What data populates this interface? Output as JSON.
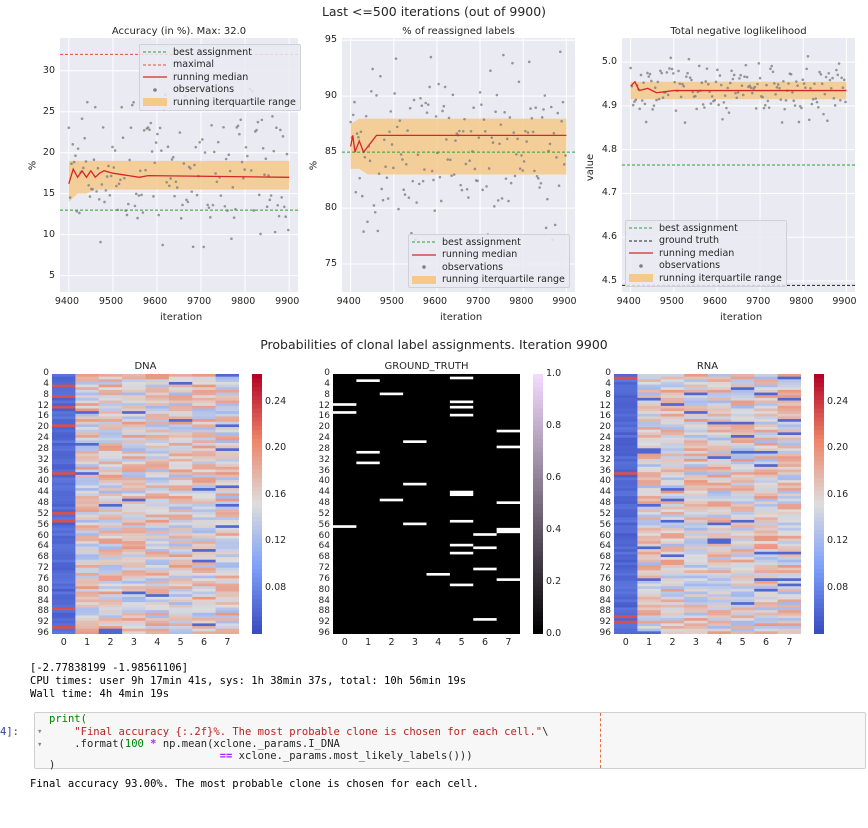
{
  "top_title": "Last <=500 iterations (out of 9900)",
  "heat_title": "Probabilities of clonal label assignments. Iteration 9900",
  "colors": {
    "grid_bg": "#eaeaf2",
    "median": "#d62728",
    "iqr": "#f6c98a",
    "best": "#2ca02c",
    "maximal": "#e74c3c",
    "truth": "#222222",
    "obs": "#808080"
  },
  "chart_data": [
    {
      "type": "line",
      "title": "Accuracy (in %). Max: 32.0",
      "xlabel": "iteration",
      "ylabel": "%",
      "xlim": [
        9380,
        9920
      ],
      "ylim": [
        3,
        34
      ],
      "xticks": [
        9400,
        9500,
        9600,
        9700,
        9800,
        9900
      ],
      "yticks": [
        5,
        10,
        15,
        20,
        25,
        30
      ],
      "hlines": {
        "best": 13,
        "maximal": 32
      },
      "series": [
        {
          "name": "running median",
          "x": [
            9400,
            9410,
            9420,
            9430,
            9440,
            9450,
            9460,
            9470,
            9480,
            9500,
            9560,
            9580,
            9900
          ],
          "values": [
            16.2,
            18.0,
            17.0,
            17.8,
            17.0,
            17.8,
            17.0,
            17.5,
            17.8,
            17.5,
            17.0,
            17.2,
            17.0
          ]
        },
        {
          "name": "running iterquartile range",
          "x": [
            9400,
            9420,
            9440,
            9460,
            9900
          ],
          "low": [
            14,
            15,
            15,
            15.5,
            15.5
          ],
          "high": [
            19,
            19,
            19,
            19,
            19
          ]
        }
      ],
      "obs_range": [
        8,
        28
      ],
      "legend": [
        "best assignment",
        "maximal",
        "running median",
        "observations",
        "running iterquartile range"
      ],
      "legend_loc": "top-right"
    },
    {
      "type": "line",
      "title": "% of reassigned labels",
      "xlabel": "iteration",
      "ylabel": "%",
      "xlim": [
        9380,
        9920
      ],
      "ylim": [
        72.5,
        95.2
      ],
      "xticks": [
        9400,
        9500,
        9600,
        9700,
        9800,
        9900
      ],
      "yticks": [
        75,
        80,
        85,
        90,
        95
      ],
      "hlines": {
        "best": 85
      },
      "series": [
        {
          "name": "running median",
          "x": [
            9400,
            9405,
            9410,
            9420,
            9430,
            9440,
            9450,
            9460,
            9900
          ],
          "values": [
            85.5,
            86.5,
            85.0,
            86.0,
            85.0,
            85.5,
            86.0,
            86.5,
            86.5
          ]
        },
        {
          "name": "running iterquartile range",
          "x": [
            9400,
            9420,
            9440,
            9460,
            9900
          ],
          "low": [
            83.5,
            83.5,
            83.0,
            83.0,
            83.0
          ],
          "high": [
            87.5,
            88,
            88,
            88,
            88
          ]
        }
      ],
      "obs_range": [
        77,
        94
      ],
      "legend": [
        "best assignment",
        "running median",
        "observations",
        "running iterquartile range"
      ],
      "legend_loc": "bottom-right"
    },
    {
      "type": "line",
      "title": "Total negative loglikelihood",
      "xlabel": "iteration",
      "ylabel": "value",
      "xlim": [
        9380,
        9920
      ],
      "ylim": [
        4.475,
        5.055
      ],
      "xticks": [
        9400,
        9500,
        9600,
        9700,
        9800,
        9900
      ],
      "yticks": [
        4.5,
        4.6,
        4.7,
        4.8,
        4.9,
        5.0
      ],
      "hlines": {
        "best": 4.765,
        "truth": 4.49
      },
      "series": [
        {
          "name": "running median",
          "x": [
            9400,
            9410,
            9420,
            9440,
            9460,
            9500,
            9600,
            9700,
            9900
          ],
          "values": [
            4.945,
            4.955,
            4.935,
            4.94,
            4.93,
            4.935,
            4.935,
            4.935,
            4.935
          ]
        },
        {
          "name": "running iterquartile range",
          "x": [
            9400,
            9900
          ],
          "low": [
            4.915,
            4.915
          ],
          "high": [
            4.955,
            4.955
          ]
        }
      ],
      "obs_range": [
        4.86,
        5.02
      ],
      "legend": [
        "best assignment",
        "ground truth",
        "running median",
        "observations",
        "running iterquartile range"
      ],
      "legend_loc": "bottom-left"
    },
    {
      "type": "heatmap",
      "title": "DNA",
      "x": [
        "0",
        "1",
        "2",
        "3",
        "4",
        "5",
        "6",
        "7"
      ],
      "y": [
        "0",
        "4",
        "8",
        "12",
        "16",
        "20",
        "24",
        "28",
        "32",
        "36",
        "40",
        "44",
        "48",
        "52",
        "56",
        "60",
        "64",
        "68",
        "72",
        "76",
        "80",
        "84",
        "88",
        "92",
        "96"
      ],
      "colorbar_ticks": [
        "0.24",
        "0.20",
        "0.16",
        "0.12",
        "0.08"
      ]
    },
    {
      "type": "heatmap",
      "title": "GROUND_TRUTH",
      "x": [
        "0",
        "1",
        "2",
        "3",
        "4",
        "5",
        "6",
        "7"
      ],
      "y": [
        "0",
        "4",
        "8",
        "12",
        "16",
        "20",
        "24",
        "28",
        "32",
        "36",
        "40",
        "44",
        "48",
        "52",
        "56",
        "60",
        "64",
        "68",
        "72",
        "76",
        "80",
        "84",
        "88",
        "92",
        "96"
      ],
      "colorbar_ticks": [
        "1.0",
        "0.8",
        "0.6",
        "0.4",
        "0.2",
        "0.0"
      ]
    },
    {
      "type": "heatmap",
      "title": "RNA",
      "x": [
        "0",
        "1",
        "2",
        "3",
        "4",
        "5",
        "6",
        "7"
      ],
      "y": [
        "0",
        "4",
        "8",
        "12",
        "16",
        "20",
        "24",
        "28",
        "32",
        "36",
        "40",
        "44",
        "48",
        "52",
        "56",
        "60",
        "64",
        "68",
        "72",
        "76",
        "80",
        "84",
        "88",
        "92",
        "96"
      ],
      "colorbar_ticks": [
        "0.24",
        "0.20",
        "0.16",
        "0.12",
        "0.08"
      ]
    }
  ],
  "output": {
    "line1": "[-2.77838199 -1.98561106]",
    "line2": "CPU times: user 9h 17min 41s, sys: 1h 38min 37s, total: 10h 56min 19s",
    "line3": "Wall time: 4h 4min 19s"
  },
  "cell": {
    "prompt": "4]:",
    "fold_marker": "▾",
    "l1_fn": "print(",
    "l2_str": "\"Final accuracy {:.2f}%. The most probable clone is chosen for each cell.\"",
    "l2_cont": "\\",
    "l3_a": ".format(",
    "l3_num": "100",
    "l3_op": "*",
    "l3_b": "np.mean(xclone._params.I_DNA",
    "l4_op": "==",
    "l4_b": "xclone._params.most_likely_labels()))",
    "l5": ")"
  },
  "final_output": "Final accuracy 93.00%. The most probable clone is chosen for each cell."
}
